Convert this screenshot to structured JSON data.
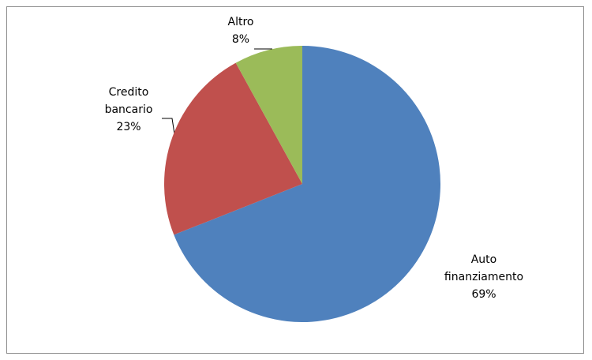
{
  "chart_data": {
    "type": "pie",
    "categories": [
      "Auto finanziamento",
      "Credito bancario",
      "Altro"
    ],
    "values": [
      69,
      23,
      8
    ],
    "value_labels": [
      "69%",
      "23%",
      "8%"
    ],
    "colors": [
      "#4f81bd",
      "#c0504d",
      "#9bbb59"
    ]
  }
}
